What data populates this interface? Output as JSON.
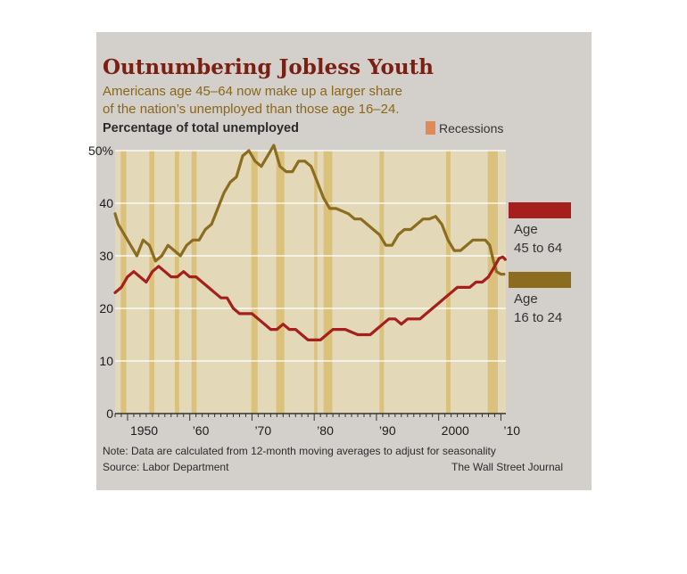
{
  "chart_data": {
    "type": "line",
    "title": "Outnumbering Jobless Youth",
    "subtitle_line1": "Americans age 45–64 now make up a larger share",
    "subtitle_line2": "of the nation’s unemployed than those age 16–24.",
    "ylabel": "Percentage of total unemployed",
    "recessions_label": "Recessions",
    "ylim": [
      0,
      50
    ],
    "xlim": [
      1948,
      2010.8
    ],
    "y_ticks": [
      {
        "value": 0,
        "label": "0"
      },
      {
        "value": 10,
        "label": "10"
      },
      {
        "value": 20,
        "label": "20"
      },
      {
        "value": 30,
        "label": "30"
      },
      {
        "value": 40,
        "label": "40"
      },
      {
        "value": 50,
        "label": "50%"
      }
    ],
    "x_ticks": [
      {
        "value": 1950,
        "label": "1950"
      },
      {
        "value": 1960,
        "label": "’60"
      },
      {
        "value": 1970,
        "label": "’70"
      },
      {
        "value": 1980,
        "label": "’80"
      },
      {
        "value": 1990,
        "label": "’90"
      },
      {
        "value": 2000,
        "label": "2000"
      },
      {
        "value": 2010,
        "label": "’10"
      }
    ],
    "grid": true,
    "recessions": [
      [
        1948.9,
        1949.8
      ],
      [
        1953.5,
        1954.3
      ],
      [
        1957.6,
        1958.3
      ],
      [
        1960.3,
        1961.1
      ],
      [
        1969.9,
        1970.9
      ],
      [
        1973.9,
        1975.2
      ],
      [
        1980.0,
        1980.5
      ],
      [
        1981.5,
        1982.9
      ],
      [
        1990.5,
        1991.2
      ],
      [
        2001.2,
        2001.9
      ],
      [
        2007.9,
        2009.5
      ]
    ],
    "series": [
      {
        "name": "Age 16 to 24",
        "legend_line1": "Age",
        "legend_line2": "16 to 24",
        "color": "#8c6d1f",
        "points": [
          [
            1948,
            38
          ],
          [
            1948.5,
            36
          ],
          [
            1949.5,
            34
          ],
          [
            1950.5,
            32
          ],
          [
            1951.5,
            30
          ],
          [
            1952.5,
            33
          ],
          [
            1953.5,
            32
          ],
          [
            1954.5,
            29
          ],
          [
            1955.5,
            30
          ],
          [
            1956.5,
            32
          ],
          [
            1957.5,
            31
          ],
          [
            1958.5,
            30
          ],
          [
            1959.5,
            32
          ],
          [
            1960.5,
            33
          ],
          [
            1961.5,
            33
          ],
          [
            1962.5,
            35
          ],
          [
            1963.5,
            36
          ],
          [
            1964.5,
            39
          ],
          [
            1965.5,
            42
          ],
          [
            1966.5,
            44
          ],
          [
            1967.5,
            45
          ],
          [
            1968.5,
            49
          ],
          [
            1969.5,
            50
          ],
          [
            1970.5,
            48
          ],
          [
            1971.5,
            47
          ],
          [
            1972.5,
            49
          ],
          [
            1973.5,
            51
          ],
          [
            1974.5,
            47
          ],
          [
            1975.5,
            46
          ],
          [
            1976.5,
            46
          ],
          [
            1977.5,
            48
          ],
          [
            1978.5,
            48
          ],
          [
            1979.5,
            47
          ],
          [
            1980.5,
            44
          ],
          [
            1981.5,
            41
          ],
          [
            1982.5,
            39
          ],
          [
            1983.5,
            39
          ],
          [
            1984.5,
            38.5
          ],
          [
            1985.5,
            38
          ],
          [
            1986.5,
            37
          ],
          [
            1987.5,
            37
          ],
          [
            1988.5,
            36
          ],
          [
            1989.5,
            35
          ],
          [
            1990.5,
            34
          ],
          [
            1991.5,
            32
          ],
          [
            1992.5,
            32
          ],
          [
            1993.5,
            34
          ],
          [
            1994.5,
            35
          ],
          [
            1995.5,
            35
          ],
          [
            1996.5,
            36
          ],
          [
            1997.5,
            37
          ],
          [
            1998.5,
            37
          ],
          [
            1999.5,
            37.5
          ],
          [
            2000.5,
            36
          ],
          [
            2001.5,
            33
          ],
          [
            2002.5,
            31
          ],
          [
            2003.5,
            31
          ],
          [
            2004.5,
            32
          ],
          [
            2005.5,
            33
          ],
          [
            2006.5,
            33
          ],
          [
            2007.5,
            33
          ],
          [
            2008.2,
            32
          ],
          [
            2008.8,
            29
          ],
          [
            2009.3,
            27
          ],
          [
            2010,
            26.5
          ],
          [
            2010.5,
            26.5
          ]
        ]
      },
      {
        "name": "Age 45 to 64",
        "legend_line1": "Age",
        "legend_line2": "45 to 64",
        "color": "#a5201c",
        "points": [
          [
            1948,
            23
          ],
          [
            1949,
            24
          ],
          [
            1950,
            26
          ],
          [
            1951,
            27
          ],
          [
            1952,
            26
          ],
          [
            1953,
            25
          ],
          [
            1954,
            27
          ],
          [
            1955,
            28
          ],
          [
            1956,
            27
          ],
          [
            1957,
            26
          ],
          [
            1958,
            26
          ],
          [
            1959,
            27
          ],
          [
            1960,
            26
          ],
          [
            1961,
            26
          ],
          [
            1962,
            25
          ],
          [
            1963,
            24
          ],
          [
            1964,
            23
          ],
          [
            1965,
            22
          ],
          [
            1966,
            22
          ],
          [
            1967,
            20
          ],
          [
            1968,
            19
          ],
          [
            1969,
            19
          ],
          [
            1970,
            19
          ],
          [
            1971,
            18
          ],
          [
            1972,
            17
          ],
          [
            1973,
            16
          ],
          [
            1974,
            16
          ],
          [
            1975,
            17
          ],
          [
            1976,
            16
          ],
          [
            1977,
            16
          ],
          [
            1978,
            15
          ],
          [
            1979,
            14
          ],
          [
            1980,
            14
          ],
          [
            1981,
            14
          ],
          [
            1982,
            15
          ],
          [
            1983,
            16
          ],
          [
            1984,
            16
          ],
          [
            1985,
            16
          ],
          [
            1986,
            15.5
          ],
          [
            1987,
            15
          ],
          [
            1988,
            15
          ],
          [
            1989,
            15
          ],
          [
            1990,
            16
          ],
          [
            1991,
            17
          ],
          [
            1992,
            18
          ],
          [
            1993,
            18
          ],
          [
            1994,
            17
          ],
          [
            1995,
            18
          ],
          [
            1996,
            18
          ],
          [
            1997,
            18
          ],
          [
            1998,
            19
          ],
          [
            1999,
            20
          ],
          [
            2000,
            21
          ],
          [
            2001,
            22
          ],
          [
            2002,
            23
          ],
          [
            2003,
            24
          ],
          [
            2004,
            24
          ],
          [
            2005,
            24
          ],
          [
            2006,
            25
          ],
          [
            2007,
            25
          ],
          [
            2008,
            26
          ],
          [
            2009,
            28
          ],
          [
            2009.7,
            29.5
          ],
          [
            2010.3,
            29.8
          ],
          [
            2010.7,
            29.3
          ]
        ]
      }
    ],
    "note": "Note: Data are calculated from 12-month moving averages to adjust for seasonality",
    "source": "Source: Labor Department",
    "credit": "The Wall Street Journal"
  }
}
